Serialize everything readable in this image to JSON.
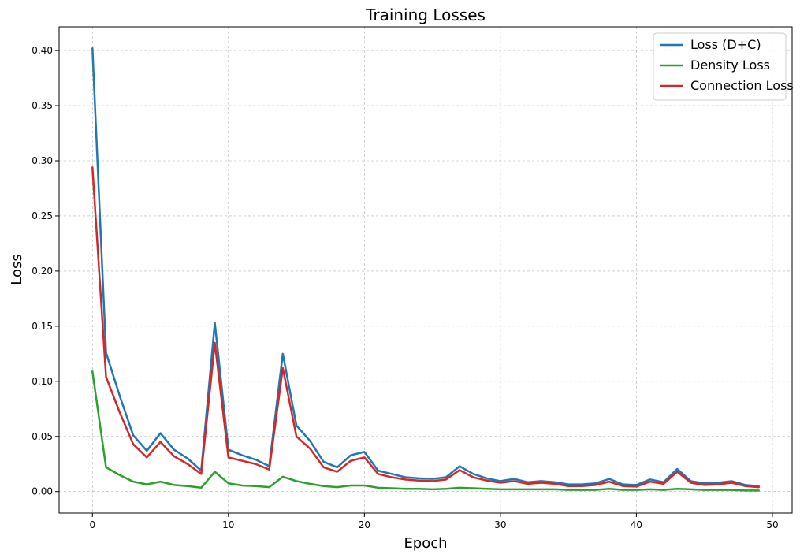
{
  "chart_data": {
    "type": "line",
    "title": "Training Losses",
    "xlabel": "Epoch",
    "ylabel": "Loss",
    "xlim": [
      -2.45,
      51.45
    ],
    "ylim": [
      -0.0195,
      0.4215
    ],
    "xticks": [
      "0",
      "10",
      "20",
      "30",
      "40",
      "50"
    ],
    "xtick_values": [
      0,
      10,
      20,
      30,
      40,
      50
    ],
    "yticks": [
      "0.00",
      "0.05",
      "0.10",
      "0.15",
      "0.20",
      "0.25",
      "0.30",
      "0.35",
      "0.40"
    ],
    "ytick_values": [
      0,
      0.05,
      0.1,
      0.15,
      0.2,
      0.25,
      0.3,
      0.35,
      0.4
    ],
    "grid": true,
    "legend_position": "top-right",
    "x": [
      0,
      1,
      2,
      3,
      4,
      5,
      6,
      7,
      8,
      9,
      10,
      11,
      12,
      13,
      14,
      15,
      16,
      17,
      18,
      19,
      20,
      21,
      22,
      23,
      24,
      25,
      26,
      27,
      28,
      29,
      30,
      31,
      32,
      33,
      34,
      35,
      36,
      37,
      38,
      39,
      40,
      41,
      42,
      43,
      44,
      45,
      46,
      47,
      48,
      49
    ],
    "series": [
      {
        "name": "Loss (D+C)",
        "color": "#1f77b4",
        "values": [
          0.402,
          0.126,
          0.087,
          0.051,
          0.037,
          0.053,
          0.038,
          0.03,
          0.019,
          0.153,
          0.038,
          0.033,
          0.029,
          0.023,
          0.125,
          0.06,
          0.046,
          0.027,
          0.022,
          0.033,
          0.036,
          0.019,
          0.016,
          0.013,
          0.012,
          0.0115,
          0.013,
          0.023,
          0.016,
          0.012,
          0.0095,
          0.0115,
          0.0085,
          0.0095,
          0.0085,
          0.0065,
          0.0065,
          0.0075,
          0.0115,
          0.0065,
          0.006,
          0.011,
          0.0085,
          0.0205,
          0.0095,
          0.0075,
          0.008,
          0.0095,
          0.006,
          0.005
        ]
      },
      {
        "name": "Density Loss",
        "color": "#2ca02c",
        "values": [
          0.109,
          0.022,
          0.015,
          0.009,
          0.0065,
          0.009,
          0.006,
          0.005,
          0.0035,
          0.018,
          0.0075,
          0.0055,
          0.005,
          0.004,
          0.0135,
          0.0095,
          0.007,
          0.005,
          0.004,
          0.0055,
          0.0055,
          0.0035,
          0.003,
          0.0025,
          0.0025,
          0.002,
          0.0025,
          0.0035,
          0.003,
          0.0025,
          0.002,
          0.002,
          0.002,
          0.002,
          0.002,
          0.0015,
          0.0015,
          0.0015,
          0.0025,
          0.0015,
          0.0015,
          0.002,
          0.0015,
          0.0025,
          0.002,
          0.0015,
          0.0015,
          0.0015,
          0.001,
          0.001
        ]
      },
      {
        "name": "Connection Loss",
        "color": "#d62728",
        "values": [
          0.294,
          0.104,
          0.072,
          0.043,
          0.031,
          0.045,
          0.032,
          0.025,
          0.016,
          0.135,
          0.031,
          0.028,
          0.025,
          0.02,
          0.112,
          0.05,
          0.039,
          0.022,
          0.018,
          0.028,
          0.031,
          0.016,
          0.013,
          0.011,
          0.01,
          0.0095,
          0.011,
          0.0195,
          0.013,
          0.01,
          0.008,
          0.0095,
          0.007,
          0.008,
          0.007,
          0.005,
          0.005,
          0.006,
          0.009,
          0.005,
          0.0045,
          0.009,
          0.007,
          0.018,
          0.008,
          0.006,
          0.0065,
          0.008,
          0.005,
          0.004
        ]
      }
    ]
  }
}
